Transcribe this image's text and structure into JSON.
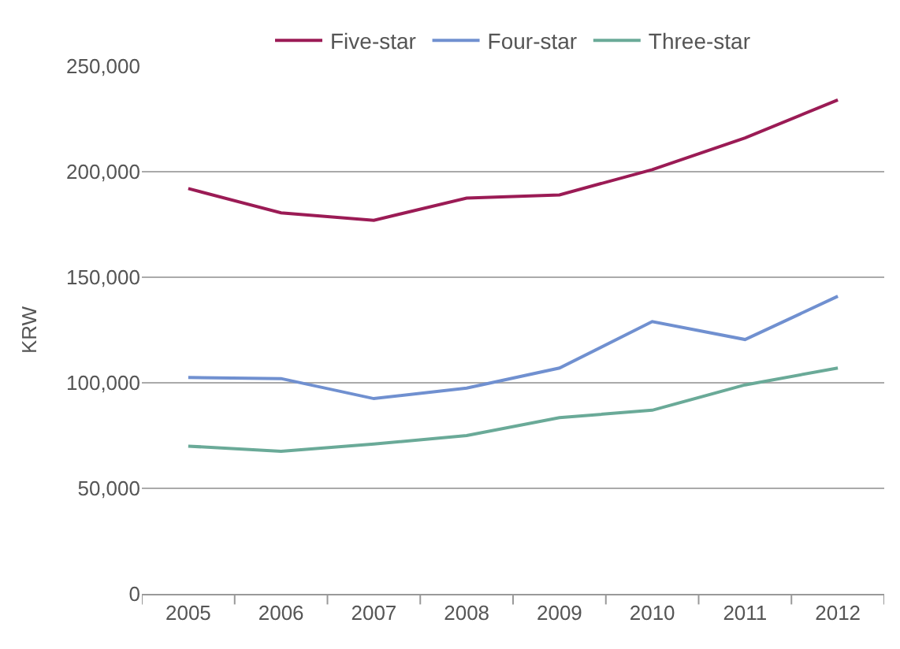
{
  "chart_data": {
    "type": "line",
    "ylabel": "KRW",
    "categories": [
      "2005",
      "2006",
      "2007",
      "2008",
      "2009",
      "2010",
      "2011",
      "2012"
    ],
    "series": [
      {
        "name": "Five-star",
        "color": "#9b1b55",
        "values": [
          192000,
          180500,
          177000,
          187500,
          189000,
          201000,
          216000,
          234000
        ]
      },
      {
        "name": "Four-star",
        "color": "#7090d0",
        "values": [
          102500,
          102000,
          92500,
          97500,
          107000,
          129000,
          120500,
          141000
        ]
      },
      {
        "name": "Three-star",
        "color": "#6aaa98",
        "values": [
          70000,
          67500,
          71000,
          75000,
          83500,
          87000,
          99000,
          107000
        ]
      }
    ],
    "ylim": [
      0,
      250000
    ],
    "yticks": [
      {
        "value": 0,
        "label": "0"
      },
      {
        "value": 50000,
        "label": "50,000"
      },
      {
        "value": 100000,
        "label": "100,000"
      },
      {
        "value": 150000,
        "label": "150,000"
      },
      {
        "value": 200000,
        "label": "200,000"
      },
      {
        "value": 250000,
        "label": "250,000"
      }
    ],
    "grid": "y",
    "legend": "top",
    "marker": "none",
    "line_style": "solid"
  }
}
